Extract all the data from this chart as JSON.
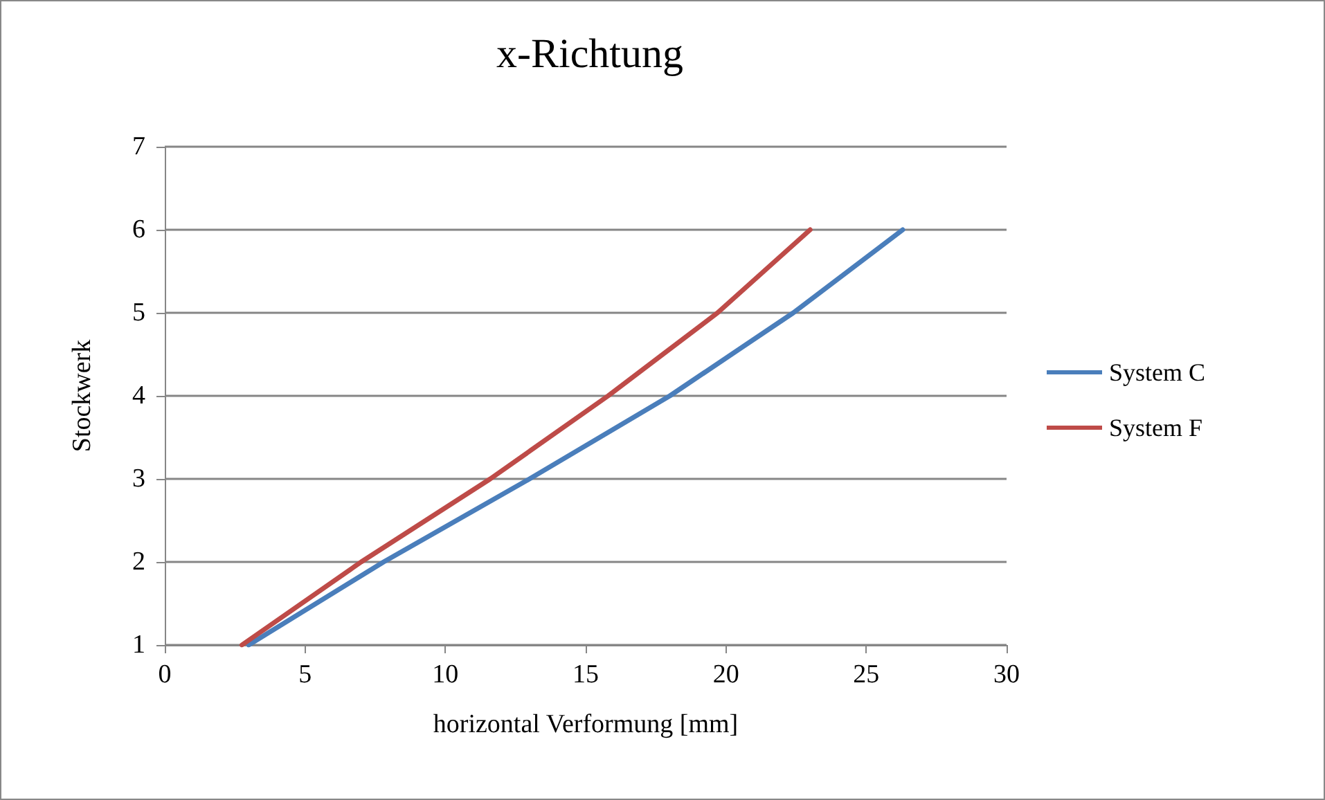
{
  "chart_data": {
    "type": "line",
    "title": "x-Richtung",
    "xlabel": "horizontal Verformung [mm]",
    "ylabel": "Stockwerk",
    "series": [
      {
        "name": "System C",
        "color": "#4a7ebb",
        "x": [
          2.99,
          7.8,
          13.0,
          18.0,
          22.4,
          26.3
        ],
        "values": [
          1,
          2,
          3,
          4,
          5,
          6
        ]
      },
      {
        "name": "System F",
        "color": "#be4b48",
        "x": [
          2.75,
          7.0,
          11.6,
          15.8,
          19.7,
          23.0
        ],
        "values": [
          1,
          2,
          3,
          4,
          5,
          6
        ]
      }
    ],
    "xlim": [
      0,
      30
    ],
    "xticks": [
      0,
      5,
      10,
      15,
      20,
      25,
      30
    ],
    "ylim": [
      1,
      7
    ],
    "yticks": [
      1,
      2,
      3,
      4,
      5,
      6,
      7
    ],
    "grid": "y",
    "legend": "right",
    "marker": "none",
    "line_style": "solid"
  }
}
